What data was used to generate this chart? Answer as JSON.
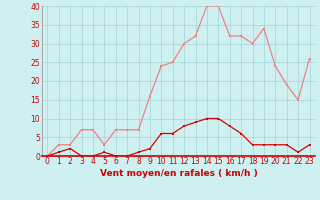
{
  "x": [
    0,
    1,
    2,
    3,
    4,
    5,
    6,
    7,
    8,
    9,
    10,
    11,
    12,
    13,
    14,
    15,
    16,
    17,
    18,
    19,
    20,
    21,
    22,
    23
  ],
  "wind_avg": [
    0,
    1,
    2,
    0,
    0,
    1,
    0,
    0,
    1,
    2,
    6,
    6,
    8,
    9,
    10,
    10,
    8,
    6,
    3,
    3,
    3,
    3,
    1,
    3
  ],
  "wind_gust": [
    0,
    3,
    3,
    7,
    7,
    3,
    7,
    7,
    7,
    16,
    24,
    25,
    30,
    32,
    40,
    40,
    32,
    32,
    30,
    34,
    24,
    19,
    15,
    26
  ],
  "xlabel": "Vent moyen/en rafales ( km/h )",
  "ylim": [
    0,
    40
  ],
  "xlim": [
    -0.5,
    23.5
  ],
  "yticks": [
    0,
    5,
    10,
    15,
    20,
    25,
    30,
    35,
    40
  ],
  "xticks": [
    0,
    1,
    2,
    3,
    4,
    5,
    6,
    7,
    8,
    9,
    10,
    11,
    12,
    13,
    14,
    15,
    16,
    17,
    18,
    19,
    20,
    21,
    22,
    23
  ],
  "bg_color": "#cef0f0",
  "grid_color": "#a8d8d8",
  "line_avg_color": "#dd0000",
  "line_gust_color": "#f08080",
  "marker_avg_color": "#dd0000",
  "marker_gust_color": "#f08080",
  "xlabel_color": "#cc0000",
  "ytick_color": "#cc0000",
  "xtick_color": "#cc0000",
  "marker_size": 2.0,
  "line_width": 0.9,
  "tick_fontsize": 5.5,
  "xlabel_fontsize": 6.5
}
